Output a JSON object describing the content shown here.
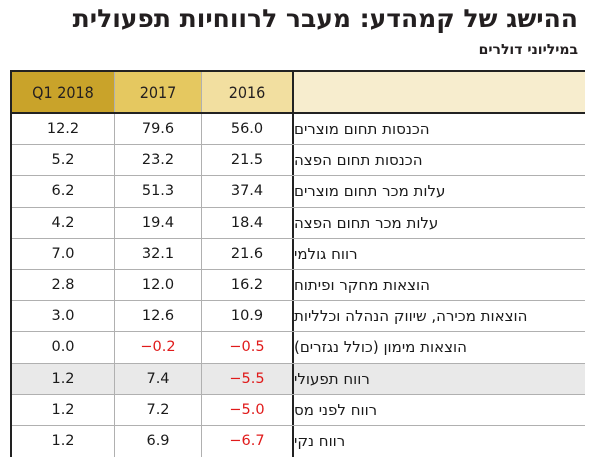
{
  "title": "ההישג של קמהדע: מעבר לרווחיות תפעולית",
  "subtitle": "במיליוני דולרים",
  "colors": {
    "negative": "#e01b1b",
    "header_q1": "#c9a32a",
    "header_2017": "#e5c860",
    "header_2016": "#f2dfa0",
    "header_label": "#f7edce"
  },
  "columns": {
    "q1": "Q1 2018",
    "y2017": "2017",
    "y2016": "2016",
    "label": ""
  },
  "rows": [
    {
      "label": "הכנסות תחום מוצרים",
      "q1": "12.2",
      "y2017": "79.6",
      "y2016": "56.0"
    },
    {
      "label": "הכנסות תחום הפצה",
      "q1": "5.2",
      "y2017": "23.2",
      "y2016": "21.5"
    },
    {
      "label": "עלות מכר תחום מוצרים",
      "q1": "6.2",
      "y2017": "51.3",
      "y2016": "37.4"
    },
    {
      "label": "עלות מכר תחום הפצה",
      "q1": "4.2",
      "y2017": "19.4",
      "y2016": "18.4"
    },
    {
      "label": "רווח גולמי",
      "q1": "7.0",
      "y2017": "32.1",
      "y2016": "21.6"
    },
    {
      "label": "הוצאות מחקר ופיתוח",
      "q1": "2.8",
      "y2017": "12.0",
      "y2016": "16.2"
    },
    {
      "label": "הוצאות מכירה, שיווק הנהלה וכלליות",
      "q1": "3.0",
      "y2017": "12.6",
      "y2016": "10.9"
    },
    {
      "label": "הוצאות מימון (כולל נגזרים)",
      "q1": "0.0",
      "y2017": "−0.2",
      "y2016": "−0.5"
    },
    {
      "label": "רווח תפעולי",
      "q1": "1.2",
      "y2017": "7.4",
      "y2016": "−5.5"
    },
    {
      "label": "רווח לפני מס",
      "q1": "1.2",
      "y2017": "7.2",
      "y2016": "−5.0"
    },
    {
      "label": "רווח נקי",
      "q1": "1.2",
      "y2017": "6.9",
      "y2016": "−6.7"
    }
  ]
}
